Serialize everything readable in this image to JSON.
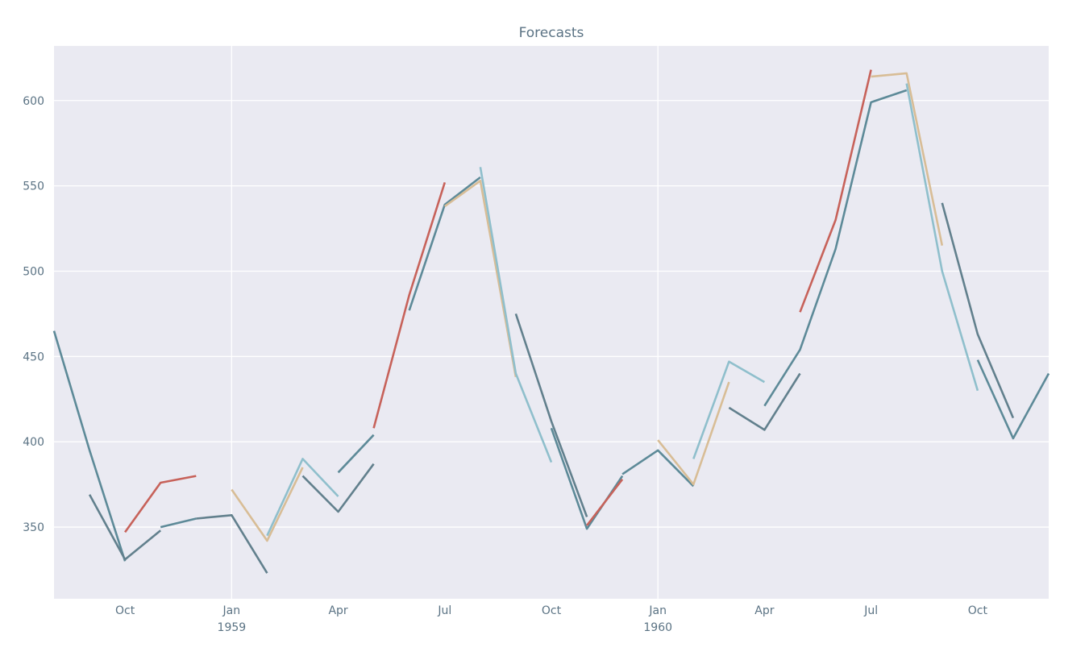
{
  "chart_data": {
    "type": "line",
    "title": "Forecasts",
    "xlabel": "",
    "ylabel": "",
    "x_axis": {
      "start": "1958-08",
      "end": "1960-12",
      "ticks": [
        {
          "date": "1958-10",
          "label": "Oct",
          "sublabel": ""
        },
        {
          "date": "1959-01",
          "label": "Jan",
          "sublabel": "1959"
        },
        {
          "date": "1959-04",
          "label": "Apr",
          "sublabel": ""
        },
        {
          "date": "1959-07",
          "label": "Jul",
          "sublabel": ""
        },
        {
          "date": "1959-10",
          "label": "Oct",
          "sublabel": ""
        },
        {
          "date": "1960-01",
          "label": "Jan",
          "sublabel": "1960"
        },
        {
          "date": "1960-04",
          "label": "Apr",
          "sublabel": ""
        },
        {
          "date": "1960-07",
          "label": "Jul",
          "sublabel": ""
        },
        {
          "date": "1960-10",
          "label": "Oct",
          "sublabel": ""
        }
      ],
      "major_grid": [
        "1959-01",
        "1960-01"
      ]
    },
    "y_axis": {
      "ylim": [
        308,
        632
      ],
      "ticks": [
        350,
        400,
        450,
        500,
        550,
        600
      ]
    },
    "grid": true,
    "colors": {
      "actual": "#5d8a98",
      "red": "#c7625a",
      "tan": "#d8bd96",
      "light_blue": "#8fbfcc",
      "dark": "#62808d"
    },
    "series": [
      {
        "color": "actual",
        "points": [
          [
            "1958-08",
            465
          ],
          [
            "1958-09",
            395
          ],
          [
            "1958-10",
            330
          ]
        ]
      },
      {
        "color": "dark",
        "points": [
          [
            "1958-09",
            369
          ],
          [
            "1958-10",
            331
          ],
          [
            "1958-11",
            348
          ]
        ]
      },
      {
        "color": "red",
        "points": [
          [
            "1958-10",
            347
          ],
          [
            "1958-11",
            376
          ],
          [
            "1958-12",
            380
          ]
        ]
      },
      {
        "color": "actual",
        "points": [
          [
            "1958-11",
            350
          ],
          [
            "1958-12",
            355
          ]
        ]
      },
      {
        "color": "dark",
        "points": [
          [
            "1958-12",
            355
          ],
          [
            "1959-01",
            357
          ],
          [
            "1959-02",
            323
          ]
        ]
      },
      {
        "color": "tan",
        "points": [
          [
            "1959-01",
            372
          ],
          [
            "1959-02",
            342
          ],
          [
            "1959-03",
            385
          ]
        ]
      },
      {
        "color": "light_blue",
        "points": [
          [
            "1959-02",
            345
          ],
          [
            "1959-03",
            390
          ],
          [
            "1959-04",
            368
          ]
        ]
      },
      {
        "color": "dark",
        "points": [
          [
            "1959-03",
            380
          ],
          [
            "1959-04",
            359
          ],
          [
            "1959-05",
            387
          ]
        ]
      },
      {
        "color": "actual",
        "points": [
          [
            "1959-04",
            382
          ],
          [
            "1959-05",
            404
          ]
        ]
      },
      {
        "color": "red",
        "points": [
          [
            "1959-05",
            408
          ],
          [
            "1959-06",
            486
          ],
          [
            "1959-07",
            552
          ]
        ]
      },
      {
        "color": "actual",
        "points": [
          [
            "1959-06",
            477
          ],
          [
            "1959-07",
            539
          ],
          [
            "1959-08",
            555
          ]
        ]
      },
      {
        "color": "tan",
        "points": [
          [
            "1959-07",
            538
          ],
          [
            "1959-08",
            553
          ],
          [
            "1959-09",
            438
          ]
        ]
      },
      {
        "color": "light_blue",
        "points": [
          [
            "1959-08",
            561
          ],
          [
            "1959-09",
            440
          ],
          [
            "1959-10",
            388
          ]
        ]
      },
      {
        "color": "dark",
        "points": [
          [
            "1959-09",
            475
          ],
          [
            "1959-10",
            412
          ],
          [
            "1959-11",
            356
          ]
        ]
      },
      {
        "color": "actual",
        "points": [
          [
            "1959-10",
            408
          ],
          [
            "1959-11",
            349
          ],
          [
            "1959-12",
            380
          ]
        ]
      },
      {
        "color": "red",
        "points": [
          [
            "1959-11",
            351
          ],
          [
            "1959-12",
            378
          ]
        ]
      },
      {
        "color": "actual",
        "points": [
          [
            "1959-12",
            381
          ],
          [
            "1960-01",
            395
          ],
          [
            "1960-02",
            374
          ]
        ]
      },
      {
        "color": "tan",
        "points": [
          [
            "1960-01",
            401
          ],
          [
            "1960-02",
            375
          ],
          [
            "1960-03",
            435
          ]
        ]
      },
      {
        "color": "light_blue",
        "points": [
          [
            "1960-02",
            390
          ],
          [
            "1960-03",
            447
          ],
          [
            "1960-04",
            435
          ]
        ]
      },
      {
        "color": "dark",
        "points": [
          [
            "1960-03",
            420
          ],
          [
            "1960-04",
            407
          ],
          [
            "1960-05",
            440
          ]
        ]
      },
      {
        "color": "actual",
        "points": [
          [
            "1960-04",
            421
          ],
          [
            "1960-05",
            454
          ],
          [
            "1960-06",
            513
          ],
          [
            "1960-07",
            599
          ],
          [
            "1960-08",
            606
          ]
        ]
      },
      {
        "color": "red",
        "points": [
          [
            "1960-05",
            476
          ],
          [
            "1960-06",
            530
          ],
          [
            "1960-07",
            618
          ]
        ]
      },
      {
        "color": "tan",
        "points": [
          [
            "1960-07",
            614
          ],
          [
            "1960-08",
            616
          ],
          [
            "1960-09",
            515
          ]
        ]
      },
      {
        "color": "light_blue",
        "points": [
          [
            "1960-08",
            610
          ],
          [
            "1960-09",
            500
          ],
          [
            "1960-10",
            430
          ]
        ]
      },
      {
        "color": "dark",
        "points": [
          [
            "1960-09",
            540
          ],
          [
            "1960-10",
            463
          ],
          [
            "1960-11",
            414
          ]
        ]
      },
      {
        "color": "actual",
        "points": [
          [
            "1960-10",
            448
          ],
          [
            "1960-11",
            402
          ],
          [
            "1960-12",
            440
          ]
        ]
      }
    ]
  }
}
